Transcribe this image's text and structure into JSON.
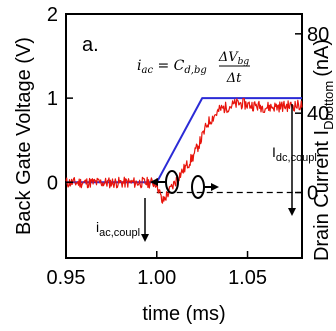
{
  "chart_data": {
    "type": "line",
    "panel_label": "a.",
    "xlabel": "time (ms)",
    "ylabel_left": "Back Gate Voltage (V)",
    "ylabel_right_main": "Drain Current I",
    "ylabel_right_sub": "Dbottom",
    "ylabel_right_unit": "(nA)",
    "xlim": [
      0.95,
      1.08
    ],
    "ylim_left": [
      -0.9,
      2.0
    ],
    "ylim_right": [
      -33,
      90
    ],
    "x_ticks": [
      {
        "value": 0.95,
        "label": "0.95"
      },
      {
        "value": 1.0,
        "label": "1.00"
      },
      {
        "value": 1.05,
        "label": "1.05"
      }
    ],
    "y_left_ticks": [
      {
        "value": 0,
        "label": "0"
      },
      {
        "value": 1,
        "label": "1"
      },
      {
        "value": 2,
        "label": "2"
      }
    ],
    "y_right_ticks": [
      {
        "value": 0,
        "label": "0"
      },
      {
        "value": 40,
        "label": "40"
      },
      {
        "value": 80,
        "label": "80"
      }
    ],
    "series": [
      {
        "color": "#2b2bd6",
        "axis": "left",
        "x": [
          0.95,
          1.0,
          1.025,
          1.08
        ],
        "y": [
          0.0,
          0.0,
          1.0,
          1.0
        ]
      },
      {
        "color": "#e8140c",
        "axis": "right",
        "x": [
          0.95,
          0.975,
          0.995,
          1.0,
          1.003,
          1.012,
          1.02,
          1.025,
          1.028,
          1.035,
          1.045,
          1.06,
          1.08
        ],
        "y": [
          5,
          5,
          5,
          5,
          -5,
          8,
          18,
          28,
          35,
          42,
          45,
          43,
          44
        ],
        "noise_amplitude": 2.8
      }
    ],
    "reference_line": {
      "axis": "right",
      "y": 0,
      "x_from": 1.0,
      "x_to": 1.08,
      "style": "dashed"
    },
    "annotations": {
      "equation": {
        "lhs": "i",
        "lhs_sub": "ac",
        "eq": " = C",
        "c_sub": "d,bg",
        "numerator": "ΔV",
        "numerator_sub": "bg",
        "denominator": "Δt"
      },
      "i_dc": {
        "main": "I",
        "sub": "dc,coupl"
      },
      "i_ac": {
        "main": "i",
        "sub": "ac,coupl"
      }
    }
  }
}
